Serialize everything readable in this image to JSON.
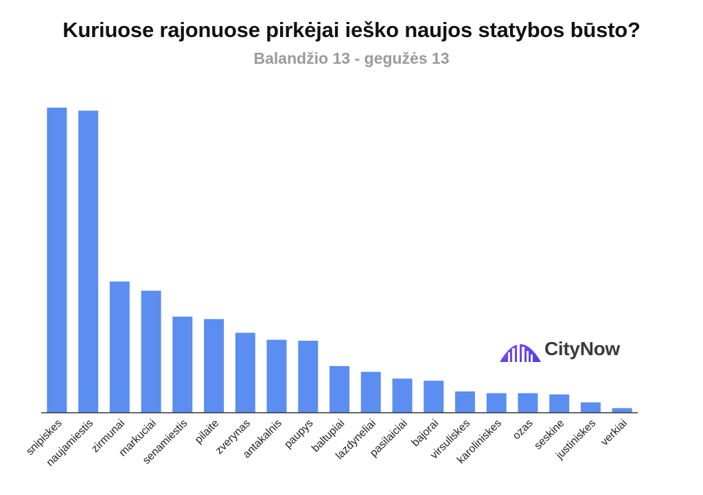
{
  "header": {
    "title": "Kuriuose rajonuose pirkėjai ieško naujos statybos būsto?",
    "subtitle": "Balandžio 13 - gegužės 13"
  },
  "logo": {
    "text": "CityNow",
    "icon": "city-skyline-icon",
    "color": "#6b38f0"
  },
  "chart_data": {
    "type": "bar",
    "title": "Kuriuose rajonuose pirkėjai ieško naujos statybos būsto?",
    "subtitle": "Balandžio 13 - gegužės 13",
    "xlabel": "",
    "ylabel": "",
    "grid": false,
    "bar_color": "#5b8ef0",
    "categories": [
      "snipiskes",
      "naujamiestis",
      "zirmunai",
      "markuciai",
      "senamiestis",
      "pilaite",
      "zverynas",
      "antakalnis",
      "paupys",
      "baltupiai",
      "lazdyneliai",
      "pasilaiciai",
      "bajorai",
      "virsuliskes",
      "karoliniskes",
      "ozas",
      "seskine",
      "justiniskes",
      "verkiai"
    ],
    "values": [
      100,
      99,
      43,
      40,
      31.5,
      30.7,
      26.2,
      23.9,
      23.6,
      15.3,
      13.4,
      11.2,
      10.5,
      7,
      6.4,
      6.4,
      6,
      3.4,
      1.5
    ],
    "ylim": [
      0,
      100
    ]
  }
}
